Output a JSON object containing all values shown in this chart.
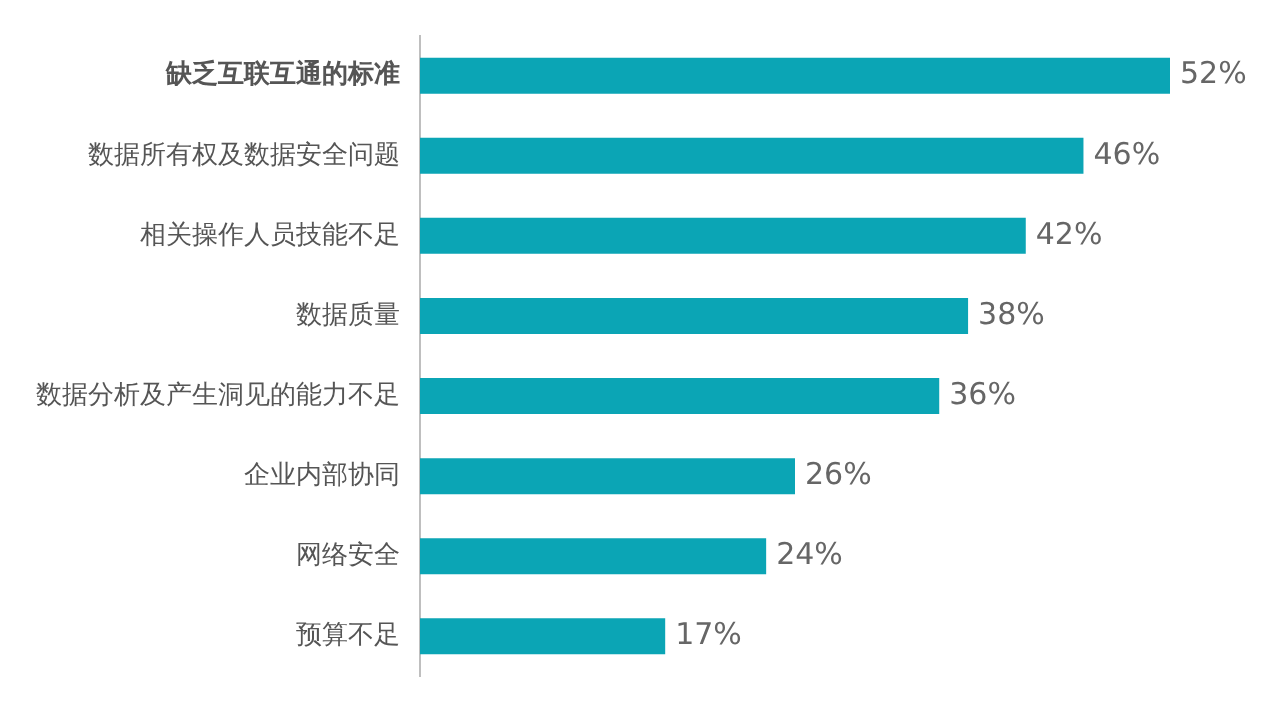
{
  "chart_data": {
    "type": "bar",
    "orientation": "horizontal",
    "categories": [
      "缺乏互联互通的标准",
      "数据所有权及数据安全问题",
      "相关操作人员技能不足",
      "数据质量",
      "数据分析及产生洞见的能力不足",
      "企业内部协同",
      "网络安全",
      "预算不足"
    ],
    "values": [
      52,
      46,
      42,
      38,
      36,
      26,
      24,
      17
    ],
    "value_labels": [
      "52%",
      "46%",
      "42%",
      "38%",
      "36%",
      "26%",
      "24%",
      "17%"
    ],
    "color": "#0ba5b5",
    "legend": false
  }
}
